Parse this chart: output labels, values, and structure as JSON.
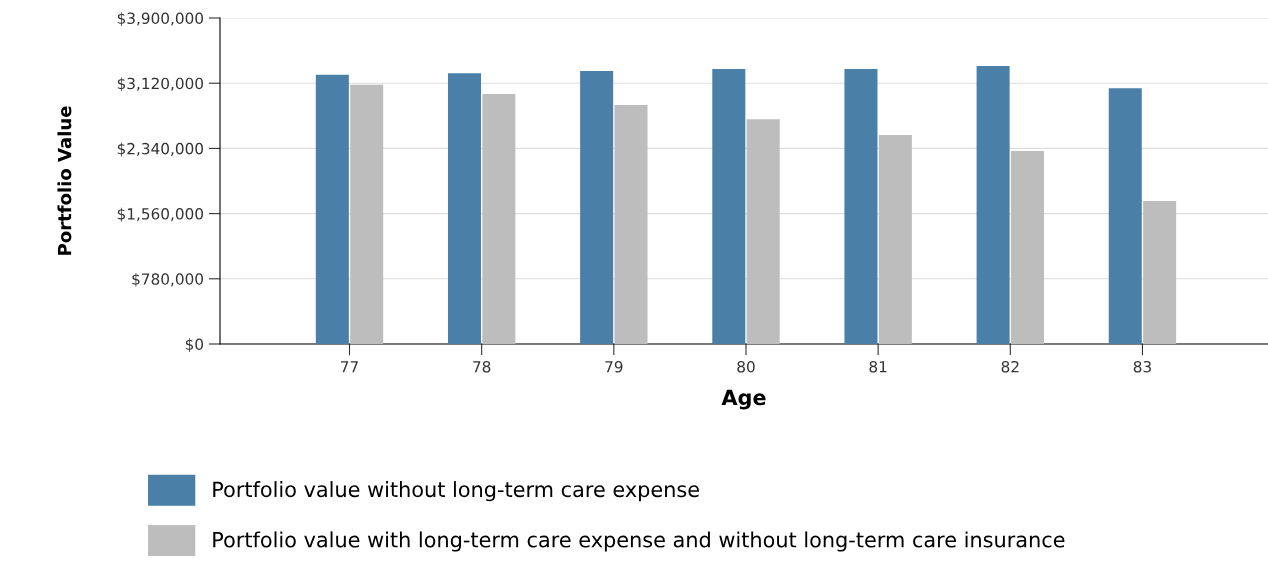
{
  "chart_data": {
    "type": "bar",
    "xlabel": "Age",
    "ylabel": "Portfolio Value",
    "categories": [
      "77",
      "78",
      "79",
      "80",
      "81",
      "82",
      "83"
    ],
    "series": [
      {
        "name": "Portfolio value without long-term care expense",
        "color": "#4a80a8",
        "values": [
          3220000,
          3240000,
          3265000,
          3290000,
          3290000,
          3325000,
          3060000
        ]
      },
      {
        "name": "Portfolio value with long-term care expense and without long-term care insurance",
        "color": "#bdbdbd",
        "values": [
          3100000,
          2990000,
          2860000,
          2690000,
          2500000,
          2310000,
          1710000
        ]
      }
    ],
    "ylim": [
      0,
      3900000
    ],
    "yticks": [
      {
        "value": 0,
        "label": "$0"
      },
      {
        "value": 780000,
        "label": "$780,000"
      },
      {
        "value": 1560000,
        "label": "$1,560,000"
      },
      {
        "value": 2340000,
        "label": "$2,340,000"
      },
      {
        "value": 3120000,
        "label": "$3,120,000"
      },
      {
        "value": 3900000,
        "label": "$3,900,000"
      }
    ],
    "grid": "y",
    "legend": "bottom"
  }
}
